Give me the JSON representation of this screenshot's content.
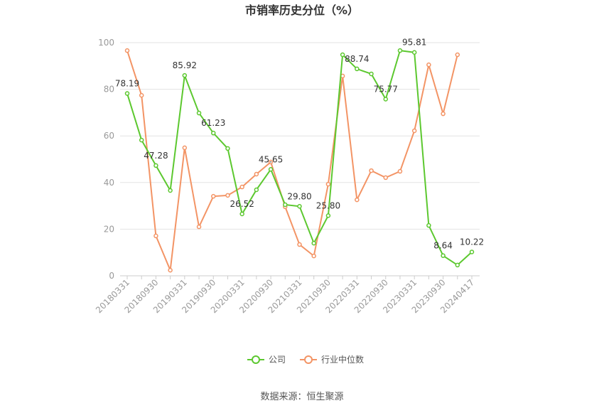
{
  "chart_data": {
    "type": "line",
    "title": "市销率历史分位（%）",
    "categories": [
      "20180331",
      null,
      "20180930",
      null,
      "20190331",
      null,
      "20190930",
      null,
      "20200331",
      null,
      "20200930",
      null,
      "20210331",
      null,
      "20210930",
      null,
      "20220331",
      null,
      "20220930",
      null,
      "20230331",
      null,
      "20230930",
      null,
      "20240417"
    ],
    "series": [
      {
        "name": "公司",
        "color": "#5cc82f",
        "values": [
          78.19,
          58.2,
          47.28,
          36.6,
          85.92,
          69.8,
          61.23,
          54.6,
          26.52,
          36.9,
          45.65,
          30.5,
          29.8,
          14.0,
          25.8,
          94.8,
          88.74,
          86.6,
          75.77,
          96.6,
          95.81,
          21.6,
          8.64,
          4.6,
          10.22
        ],
        "value_labels": [
          "78.19",
          null,
          "47.28",
          null,
          "85.92",
          null,
          "61.23",
          null,
          "26.52",
          null,
          "45.65",
          null,
          "29.80",
          null,
          "25.80",
          null,
          "88.74",
          null,
          "75.77",
          null,
          "95.81",
          null,
          "8.64",
          null,
          "10.22"
        ]
      },
      {
        "name": "行业中位数",
        "color": "#f39465",
        "values": [
          96.6,
          77.4,
          17.1,
          2.4,
          54.9,
          21.0,
          34.1,
          34.5,
          38.1,
          43.6,
          48.8,
          29.6,
          13.4,
          8.5,
          39.3,
          85.7,
          32.6,
          45.1,
          42.1,
          44.8,
          62.2,
          90.5,
          69.5,
          94.8,
          null
        ]
      }
    ],
    "ylim": [
      0,
      100
    ],
    "yticks": [
      0,
      20,
      40,
      60,
      80,
      100
    ],
    "grid": true,
    "source": "数据来源：恒生聚源"
  }
}
